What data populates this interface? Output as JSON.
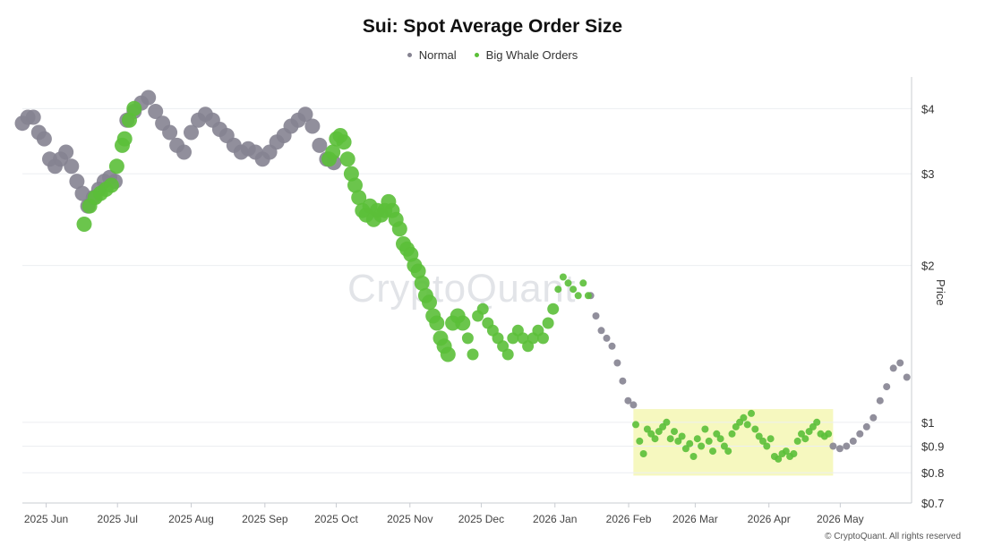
{
  "chart_data": {
    "type": "scatter",
    "title": "Sui: Spot Average Order Size",
    "ylabel": "Price",
    "yscale": "log",
    "ylim": [
      0.7,
      4.6
    ],
    "yticks": [
      {
        "value": 4,
        "label": "$4"
      },
      {
        "value": 3,
        "label": "$3"
      },
      {
        "value": 2,
        "label": "$2"
      },
      {
        "value": 1,
        "label": "$1"
      },
      {
        "value": 0.9,
        "label": "$0.9"
      },
      {
        "value": 0.8,
        "label": "$0.8"
      },
      {
        "value": 0.7,
        "label": "$0.7"
      }
    ],
    "xlim": [
      "2025-05-22",
      "2026-05-31"
    ],
    "xticks": [
      {
        "date": "2025-06-01",
        "label": "2025 Jun"
      },
      {
        "date": "2025-07-01",
        "label": "2025 Jul"
      },
      {
        "date": "2025-08-01",
        "label": "2025 Aug"
      },
      {
        "date": "2025-09-01",
        "label": "2025 Sep"
      },
      {
        "date": "2025-10-01",
        "label": "2025 Oct"
      },
      {
        "date": "2025-11-01",
        "label": "2025 Nov"
      },
      {
        "date": "2025-12-01",
        "label": "2025 Dec"
      },
      {
        "date": "2026-01-01",
        "label": "2026 Jan"
      },
      {
        "date": "2026-02-01",
        "label": "2026 Feb"
      },
      {
        "date": "2026-03-01",
        "label": "2026 Mar"
      },
      {
        "date": "2026-04-01",
        "label": "2026 Apr"
      },
      {
        "date": "2026-05-01",
        "label": "2026 May"
      }
    ],
    "grid": true,
    "legend_position": "top-center",
    "highlight_region": {
      "x": [
        "2026-02-03",
        "2026-04-28"
      ],
      "y": [
        0.79,
        1.06
      ],
      "color": "#f6f8bf"
    },
    "series": [
      {
        "name": "Normal",
        "color": "#858391",
        "segments": [
          {
            "start": "2025-05-22",
            "end": "2025-06-30",
            "points": [
              3.75,
              3.85,
              3.85,
              3.6,
              3.5,
              3.2,
              3.1,
              3.2,
              3.3,
              3.1,
              2.9,
              2.75,
              2.6,
              2.7,
              2.8,
              2.9,
              2.95,
              2.9
            ]
          },
          {
            "start": "2025-07-05",
            "end": "2025-09-30",
            "points": [
              3.8,
              3.95,
              4.1,
              4.2,
              3.95,
              3.75,
              3.6,
              3.4,
              3.3,
              3.6,
              3.8,
              3.9,
              3.8,
              3.65,
              3.55,
              3.4,
              3.3,
              3.35,
              3.3,
              3.2,
              3.3,
              3.45,
              3.55,
              3.7,
              3.8,
              3.9,
              3.7,
              3.4,
              3.2,
              3.15
            ]
          },
          {
            "start": "2026-01-16",
            "end": "2026-02-03",
            "points": [
              1.75,
              1.6,
              1.5,
              1.45,
              1.4,
              1.3,
              1.2,
              1.1,
              1.08
            ]
          },
          {
            "start": "2026-04-28",
            "end": "2026-05-29",
            "points": [
              0.9,
              0.89,
              0.9,
              0.92,
              0.95,
              0.98,
              1.02,
              1.1,
              1.17,
              1.27,
              1.3,
              1.22
            ]
          }
        ]
      },
      {
        "name": "Big Whale Orders",
        "color": "#5bbf38",
        "segments": [
          {
            "start": "2025-06-17",
            "end": "2025-07-03",
            "points": [
              2.4,
              2.6,
              2.7,
              2.75,
              2.8,
              2.85,
              3.1,
              3.4
            ]
          },
          {
            "start": "2025-07-04",
            "end": "2025-07-08",
            "points": [
              3.5,
              3.8,
              4.0
            ]
          },
          {
            "start": "2025-09-28",
            "end": "2025-11-17",
            "points": [
              3.2,
              3.3,
              3.5,
              3.55,
              3.45,
              3.2,
              3.0,
              2.85,
              2.7,
              2.55,
              2.5,
              2.6,
              2.45,
              2.55,
              2.5,
              2.55,
              2.65,
              2.55,
              2.45,
              2.35,
              2.2,
              2.15,
              2.1,
              2.0,
              1.95,
              1.85,
              1.75,
              1.7,
              1.6,
              1.55,
              1.45,
              1.4,
              1.35
            ]
          },
          {
            "start": "2025-11-19",
            "end": "2026-01-15",
            "points": [
              1.55,
              1.6,
              1.55,
              1.45,
              1.35,
              1.6,
              1.65,
              1.55,
              1.5,
              1.45,
              1.4,
              1.35,
              1.45,
              1.5,
              1.45,
              1.4,
              1.45,
              1.5,
              1.45,
              1.55,
              1.65,
              1.8,
              1.9,
              1.85,
              1.8,
              1.75,
              1.85,
              1.75
            ]
          },
          {
            "start": "2026-02-04",
            "end": "2026-04-26",
            "points": [
              0.99,
              0.92,
              0.87,
              0.97,
              0.95,
              0.93,
              0.96,
              0.98,
              1.0,
              0.93,
              0.96,
              0.92,
              0.94,
              0.89,
              0.91,
              0.86,
              0.93,
              0.9,
              0.97,
              0.92,
              0.88,
              0.95,
              0.93,
              0.9,
              0.88,
              0.95,
              0.98,
              1.0,
              1.02,
              0.99,
              1.04,
              0.97,
              0.94,
              0.92,
              0.9,
              0.93,
              0.86,
              0.85,
              0.87,
              0.88,
              0.86,
              0.87,
              0.92,
              0.95,
              0.93,
              0.96,
              0.98,
              1.0,
              0.95,
              0.94,
              0.95
            ]
          }
        ]
      }
    ]
  },
  "legend": {
    "normal_label": "Normal",
    "whale_label": "Big Whale Orders",
    "normal_color": "#858391",
    "whale_color": "#5bbf38"
  },
  "watermark": "CryptoQuant",
  "copyright": "© CryptoQuant. All rights reserved"
}
